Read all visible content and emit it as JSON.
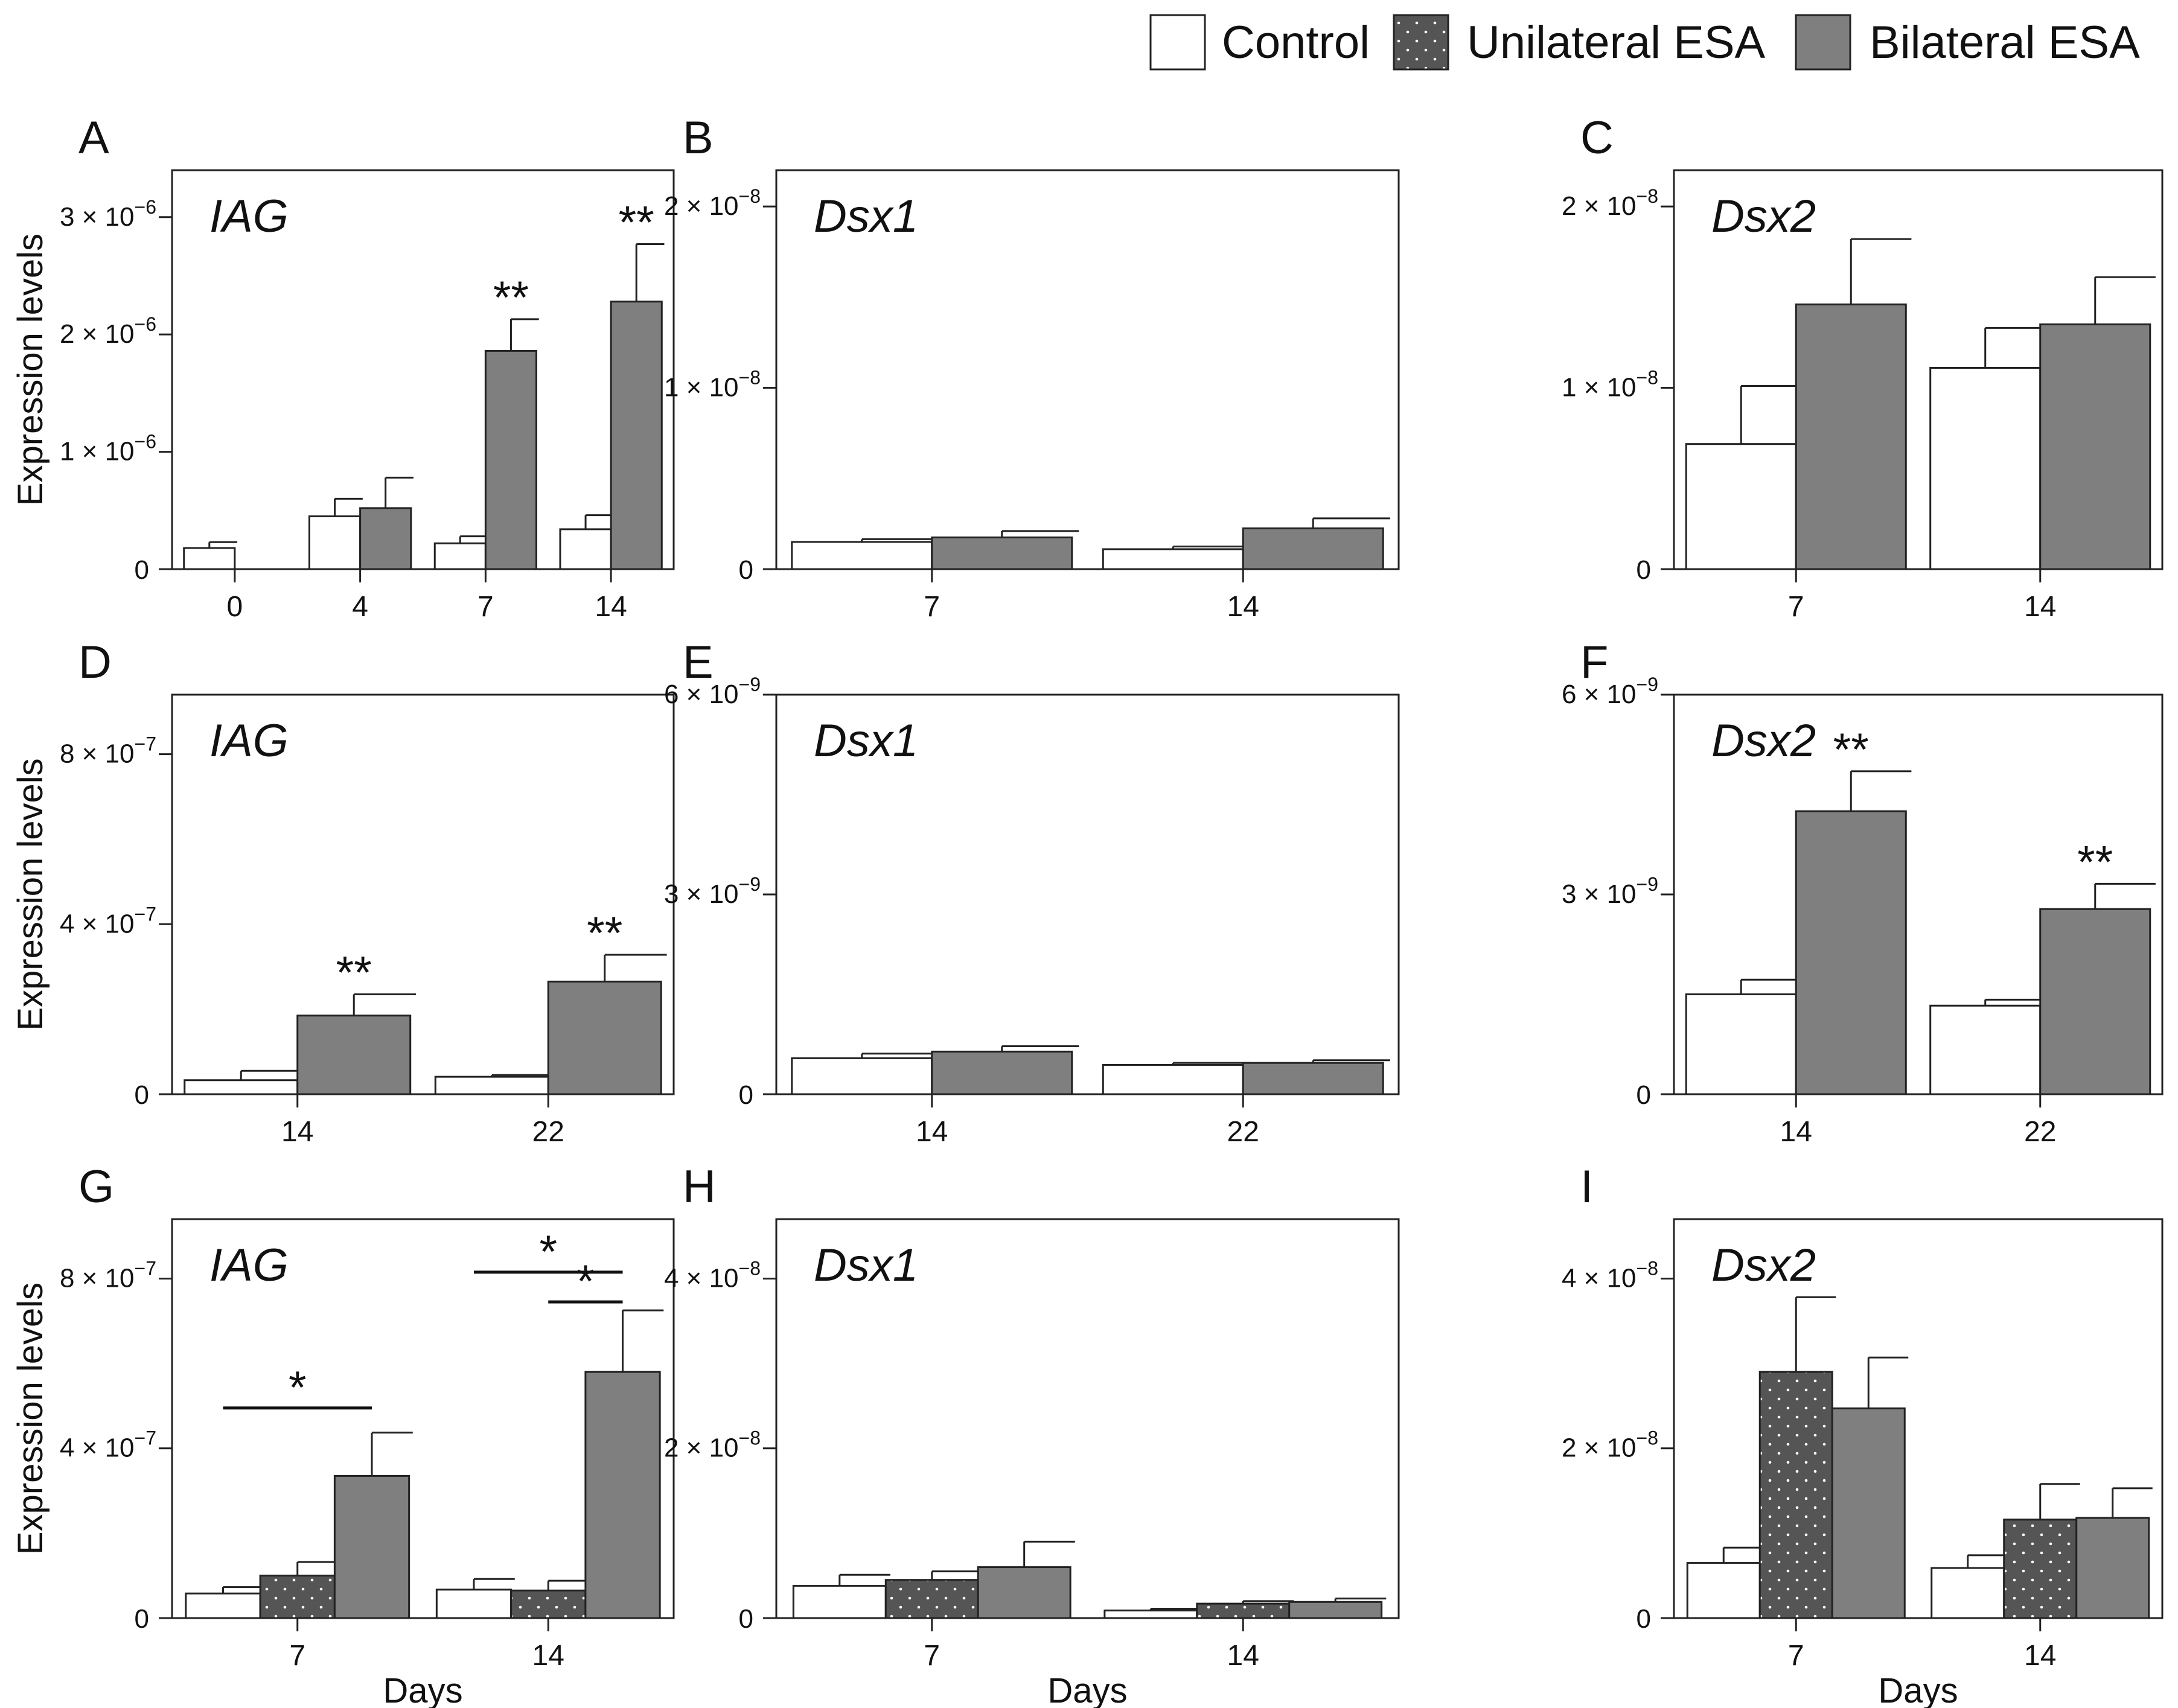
{
  "legend": {
    "items": [
      {
        "label": "Control",
        "pattern": "white"
      },
      {
        "label": "Unilateral ESA",
        "pattern": "dots"
      },
      {
        "label": "Bilateral ESA",
        "pattern": "gray"
      }
    ]
  },
  "colors": {
    "control": "#ffffff",
    "unilateral": "#555555",
    "bilateral": "#7f7f7f",
    "stroke": "#222222"
  },
  "chart_data": [
    {
      "type": "bar",
      "letter": "A",
      "title": "IAG",
      "ylabel": "Expression levels",
      "xlabel": "",
      "ylim": [
        0,
        3.4e-06
      ],
      "exp": -6,
      "yticks": [
        {
          "v": 0,
          "m": "0"
        },
        {
          "v": 1e-06,
          "m": "1"
        },
        {
          "v": 2e-06,
          "m": "2"
        },
        {
          "v": 3e-06,
          "m": "3"
        }
      ],
      "categories": [
        "0",
        "4",
        "7",
        "14"
      ],
      "series": [
        {
          "name": "Control",
          "values": [
            1.8e-07,
            4.5e-07,
            2.2e-07,
            3.4e-07
          ],
          "errors": [
            5e-08,
            1.5e-07,
            6e-08,
            1.2e-07
          ]
        },
        {
          "name": "Bilateral ESA",
          "values": [
            null,
            5.2e-07,
            1.86e-06,
            2.28e-06
          ],
          "errors": [
            null,
            2.6e-07,
            2.7e-07,
            4.9e-07
          ]
        }
      ],
      "significance": [
        {
          "label": "**",
          "category": 2,
          "series": 1
        },
        {
          "label": "**",
          "category": 3,
          "series": 1
        }
      ]
    },
    {
      "type": "bar",
      "letter": "B",
      "title": "Dsx1",
      "ylabel": "",
      "xlabel": "",
      "ylim": [
        0,
        2.2e-08
      ],
      "exp": -8,
      "yticks": [
        {
          "v": 0,
          "m": "0"
        },
        {
          "v": 1e-08,
          "m": "1"
        },
        {
          "v": 2e-08,
          "m": "2"
        }
      ],
      "categories": [
        "7",
        "14"
      ],
      "series": [
        {
          "name": "Control",
          "values": [
            1.5e-09,
            1.1e-09
          ],
          "errors": [
            1.5e-10,
            1.5e-10
          ]
        },
        {
          "name": "Bilateral ESA",
          "values": [
            1.75e-09,
            2.25e-09
          ],
          "errors": [
            3.5e-10,
            5.5e-10
          ]
        }
      ],
      "significance": []
    },
    {
      "type": "bar",
      "letter": "C",
      "title": "Dsx2",
      "ylabel": "",
      "xlabel": "",
      "ylim": [
        0,
        2.2e-08
      ],
      "exp": -8,
      "yticks": [
        {
          "v": 0,
          "m": "0"
        },
        {
          "v": 1e-08,
          "m": "1"
        },
        {
          "v": 2e-08,
          "m": "2"
        }
      ],
      "categories": [
        "7",
        "14"
      ],
      "series": [
        {
          "name": "Control",
          "values": [
            6.9e-09,
            1.11e-08
          ],
          "errors": [
            3.2e-09,
            2.2e-09
          ]
        },
        {
          "name": "Bilateral ESA",
          "values": [
            1.46e-08,
            1.35e-08
          ],
          "errors": [
            3.6e-09,
            2.6e-09
          ]
        }
      ],
      "significance": []
    },
    {
      "type": "bar",
      "letter": "D",
      "title": "IAG",
      "ylabel": "Expression levels",
      "xlabel": "",
      "ylim": [
        0,
        9.4e-07
      ],
      "exp": -7,
      "yticks": [
        {
          "v": 0,
          "m": "0"
        },
        {
          "v": 4e-07,
          "m": "4"
        },
        {
          "v": 8e-07,
          "m": "8"
        }
      ],
      "categories": [
        "14",
        "22"
      ],
      "series": [
        {
          "name": "Control",
          "values": [
            3.3e-08,
            4.1e-08
          ],
          "errors": [
            2.2e-08,
            4e-09
          ]
        },
        {
          "name": "Bilateral ESA",
          "values": [
            1.85e-07,
            2.65e-07
          ],
          "errors": [
            5e-08,
            6.3e-08
          ]
        }
      ],
      "significance": [
        {
          "label": "**",
          "category": 0,
          "series": 1
        },
        {
          "label": "**",
          "category": 1,
          "series": 1
        }
      ]
    },
    {
      "type": "bar",
      "letter": "E",
      "title": "Dsx1",
      "ylabel": "",
      "xlabel": "",
      "ylim": [
        0,
        6e-09
      ],
      "exp": -9,
      "yticks": [
        {
          "v": 0,
          "m": "0"
        },
        {
          "v": 3e-09,
          "m": "3"
        },
        {
          "v": 6e-09,
          "m": "6"
        }
      ],
      "categories": [
        "14",
        "22"
      ],
      "series": [
        {
          "name": "Control",
          "values": [
            5.4e-10,
            4.4e-10
          ],
          "errors": [
            7e-11,
            3e-11
          ]
        },
        {
          "name": "Bilateral ESA",
          "values": [
            6.4e-10,
            4.7e-10
          ],
          "errors": [
            8e-11,
            4e-11
          ]
        }
      ],
      "significance": []
    },
    {
      "type": "bar",
      "letter": "F",
      "title": "Dsx2",
      "ylabel": "",
      "xlabel": "",
      "ylim": [
        0,
        6e-09
      ],
      "exp": -9,
      "yticks": [
        {
          "v": 0,
          "m": "0"
        },
        {
          "v": 3e-09,
          "m": "3"
        },
        {
          "v": 6e-09,
          "m": "6"
        }
      ],
      "categories": [
        "14",
        "22"
      ],
      "series": [
        {
          "name": "Control",
          "values": [
            1.5e-09,
            1.33e-09
          ],
          "errors": [
            2.2e-10,
            9e-11
          ]
        },
        {
          "name": "Bilateral ESA",
          "values": [
            4.25e-09,
            2.78e-09
          ],
          "errors": [
            6e-10,
            3.8e-10
          ]
        }
      ],
      "significance": [
        {
          "label": "**",
          "category": 0,
          "series": 1
        },
        {
          "label": "**",
          "category": 1,
          "series": 1
        }
      ]
    },
    {
      "type": "bar",
      "letter": "G",
      "title": "IAG",
      "ylabel": "Expression levels",
      "xlabel": "Days",
      "ylim": [
        0,
        9.4e-07
      ],
      "exp": -7,
      "yticks": [
        {
          "v": 0,
          "m": "0"
        },
        {
          "v": 4e-07,
          "m": "4"
        },
        {
          "v": 8e-07,
          "m": "8"
        }
      ],
      "categories": [
        "7",
        "14"
      ],
      "series": [
        {
          "name": "Control",
          "values": [
            5.8e-08,
            6.7e-08
          ],
          "errors": [
            1.5e-08,
            2.5e-08
          ]
        },
        {
          "name": "Unilateral ESA",
          "values": [
            1e-07,
            6.5e-08
          ],
          "errors": [
            3.2e-08,
            2.3e-08
          ]
        },
        {
          "name": "Bilateral ESA",
          "values": [
            3.35e-07,
            5.8e-07
          ],
          "errors": [
            1.02e-07,
            1.45e-07
          ]
        }
      ],
      "significance": [
        {
          "label": "*",
          "category": 0,
          "from": 0,
          "to": 2,
          "level": 4.95e-07
        },
        {
          "label": "*",
          "category": 1,
          "from": 0,
          "to": 2,
          "level": 8.15e-07
        },
        {
          "label": "*",
          "category": 1,
          "from": 1,
          "to": 2,
          "level": 7.45e-07
        }
      ]
    },
    {
      "type": "bar",
      "letter": "H",
      "title": "Dsx1",
      "ylabel": "",
      "xlabel": "Days",
      "ylim": [
        0,
        4.7e-08
      ],
      "exp": -8,
      "yticks": [
        {
          "v": 0,
          "m": "0"
        },
        {
          "v": 2e-08,
          "m": "2"
        },
        {
          "v": 4e-08,
          "m": "4"
        }
      ],
      "categories": [
        "7",
        "14"
      ],
      "series": [
        {
          "name": "Control",
          "values": [
            3.8e-09,
            9e-10
          ],
          "errors": [
            1.3e-09,
            2e-10
          ]
        },
        {
          "name": "Unilateral ESA",
          "values": [
            4.5e-09,
            1.7e-09
          ],
          "errors": [
            1e-09,
            3e-10
          ]
        },
        {
          "name": "Bilateral ESA",
          "values": [
            6e-09,
            1.9e-09
          ],
          "errors": [
            3e-09,
            4e-10
          ]
        }
      ],
      "significance": []
    },
    {
      "type": "bar",
      "letter": "I",
      "title": "Dsx2",
      "ylabel": "",
      "xlabel": "Days",
      "ylim": [
        0,
        4.7e-08
      ],
      "exp": -8,
      "yticks": [
        {
          "v": 0,
          "m": "0"
        },
        {
          "v": 2e-08,
          "m": "2"
        },
        {
          "v": 4e-08,
          "m": "4"
        }
      ],
      "categories": [
        "7",
        "14"
      ],
      "series": [
        {
          "name": "Control",
          "values": [
            6.5e-09,
            5.9e-09
          ],
          "errors": [
            1.8e-09,
            1.5e-09
          ]
        },
        {
          "name": "Unilateral ESA",
          "values": [
            2.9e-08,
            1.16e-08
          ],
          "errors": [
            8.8e-09,
            4.2e-09
          ]
        },
        {
          "name": "Bilateral ESA",
          "values": [
            2.47e-08,
            1.18e-08
          ],
          "errors": [
            6e-09,
            3.5e-09
          ]
        }
      ],
      "significance": []
    }
  ]
}
